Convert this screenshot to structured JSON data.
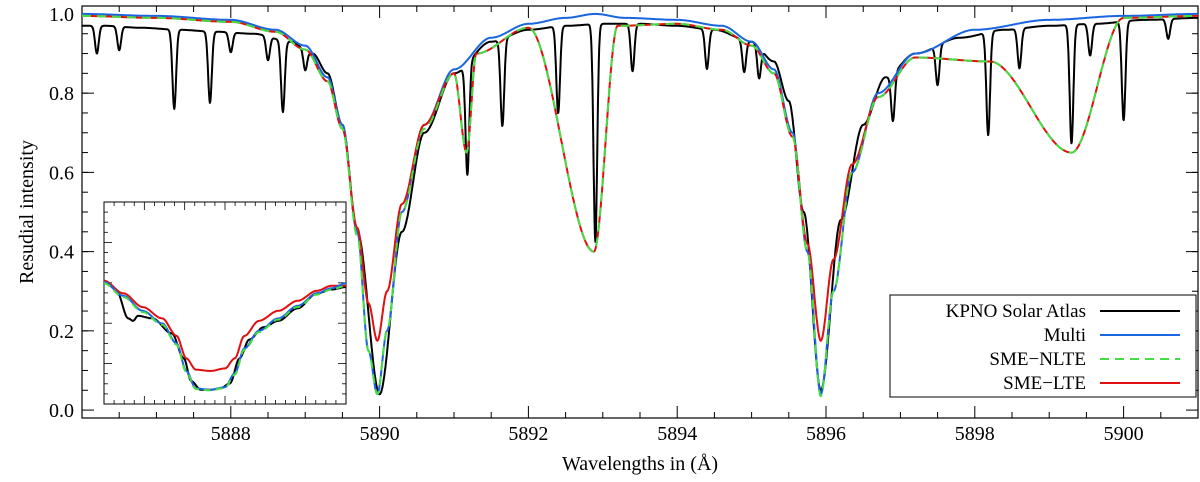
{
  "chart_data": {
    "type": "line",
    "xlabel": "Wavelengths in (Å)",
    "ylabel": "Resudial intensity",
    "xlim": [
      5886.0,
      5901.0
    ],
    "ylim": [
      -0.02,
      1.02
    ],
    "xticks": [
      5888,
      5890,
      5892,
      5894,
      5896,
      5898,
      5900
    ],
    "xtick_labels": [
      "5888",
      "5890",
      "5892",
      "5894",
      "5896",
      "5898",
      "5900"
    ],
    "yticks": [
      0.0,
      0.2,
      0.4,
      0.6,
      0.8,
      1.0
    ],
    "ytick_labels": [
      "0.0",
      "0.2",
      "0.4",
      "0.6",
      "0.8",
      "1.0"
    ],
    "grid": false,
    "legend_position": "bottom-right",
    "series": [
      {
        "name": "KPNO Solar Atlas",
        "color": "#000000",
        "dash": "solid",
        "continuum_x": [
          5886.0,
          5886.3,
          5886.8,
          5887.3,
          5887.8,
          5888.3,
          5888.8,
          5889.1,
          5889.3,
          5889.5,
          5889.7,
          5890.0,
          5890.3,
          5890.6,
          5891.0,
          5891.5,
          5892.0,
          5892.5,
          5893.0,
          5893.5,
          5894.0,
          5894.5,
          5895.0,
          5895.3,
          5895.5,
          5895.7,
          5895.93,
          5896.2,
          5896.5,
          5896.8,
          5897.2,
          5897.8,
          5898.4,
          5899.0,
          5899.6,
          5900.3,
          5901.0
        ],
        "continuum_y": [
          0.97,
          0.97,
          0.965,
          0.96,
          0.955,
          0.95,
          0.93,
          0.9,
          0.85,
          0.72,
          0.45,
          0.04,
          0.45,
          0.7,
          0.85,
          0.93,
          0.96,
          0.97,
          0.975,
          0.975,
          0.97,
          0.96,
          0.93,
          0.88,
          0.78,
          0.5,
          0.05,
          0.48,
          0.72,
          0.84,
          0.9,
          0.94,
          0.96,
          0.97,
          0.975,
          0.985,
          0.99
        ],
        "absorption_lines": [
          {
            "x": 5886.2,
            "depth": 0.07
          },
          {
            "x": 5886.5,
            "depth": 0.06
          },
          {
            "x": 5887.24,
            "depth": 0.2
          },
          {
            "x": 5887.72,
            "depth": 0.18
          },
          {
            "x": 5888.0,
            "depth": 0.05
          },
          {
            "x": 5888.5,
            "depth": 0.06
          },
          {
            "x": 5888.7,
            "depth": 0.18
          },
          {
            "x": 5889.0,
            "depth": 0.05
          },
          {
            "x": 5891.18,
            "depth": 0.28
          },
          {
            "x": 5891.65,
            "depth": 0.22
          },
          {
            "x": 5892.4,
            "depth": 0.22
          },
          {
            "x": 5892.9,
            "depth": 0.55
          },
          {
            "x": 5893.4,
            "depth": 0.12
          },
          {
            "x": 5894.4,
            "depth": 0.1
          },
          {
            "x": 5894.9,
            "depth": 0.08
          },
          {
            "x": 5895.1,
            "depth": 0.08
          },
          {
            "x": 5896.9,
            "depth": 0.12
          },
          {
            "x": 5897.5,
            "depth": 0.1
          },
          {
            "x": 5898.18,
            "depth": 0.26
          },
          {
            "x": 5898.6,
            "depth": 0.1
          },
          {
            "x": 5899.3,
            "depth": 0.3
          },
          {
            "x": 5899.55,
            "depth": 0.08
          },
          {
            "x": 5900.0,
            "depth": 0.25
          },
          {
            "x": 5900.6,
            "depth": 0.05
          }
        ]
      },
      {
        "name": "Multi",
        "color": "#1a66e0",
        "dash": "solid",
        "x": [
          5886.0,
          5887.0,
          5888.0,
          5888.6,
          5889.0,
          5889.3,
          5889.5,
          5889.7,
          5889.85,
          5889.97,
          5890.1,
          5890.3,
          5890.6,
          5891.0,
          5891.5,
          5892.0,
          5892.5,
          5892.9,
          5893.3,
          5894.0,
          5894.6,
          5895.0,
          5895.3,
          5895.55,
          5895.75,
          5895.93,
          5896.1,
          5896.35,
          5896.7,
          5897.2,
          5898.0,
          5899.0,
          5900.0,
          5901.0
        ],
        "y": [
          1.0,
          0.995,
          0.985,
          0.96,
          0.92,
          0.84,
          0.72,
          0.45,
          0.15,
          0.04,
          0.2,
          0.5,
          0.72,
          0.86,
          0.94,
          0.975,
          0.99,
          1.0,
          0.99,
          0.985,
          0.97,
          0.93,
          0.86,
          0.7,
          0.4,
          0.04,
          0.3,
          0.6,
          0.8,
          0.9,
          0.96,
          0.985,
          0.995,
          1.0
        ]
      },
      {
        "name": "SME−NLTE",
        "color": "#44dd44",
        "dash": "dashed",
        "x": [
          5886.0,
          5887.0,
          5888.0,
          5888.6,
          5889.0,
          5889.3,
          5889.5,
          5889.7,
          5889.85,
          5889.97,
          5890.1,
          5890.3,
          5890.6,
          5891.0,
          5891.17,
          5891.3,
          5892.0,
          5892.88,
          5893.2,
          5894.0,
          5894.6,
          5895.0,
          5895.3,
          5895.55,
          5895.75,
          5895.93,
          5896.1,
          5896.35,
          5896.7,
          5897.2,
          5898.2,
          5899.3,
          5900.0,
          5901.0
        ],
        "y": [
          0.995,
          0.99,
          0.98,
          0.955,
          0.91,
          0.83,
          0.71,
          0.44,
          0.15,
          0.04,
          0.2,
          0.5,
          0.71,
          0.85,
          0.65,
          0.9,
          0.965,
          0.4,
          0.97,
          0.975,
          0.96,
          0.92,
          0.85,
          0.69,
          0.4,
          0.035,
          0.3,
          0.6,
          0.79,
          0.89,
          0.88,
          0.65,
          0.99,
          0.995
        ]
      },
      {
        "name": "SME−LTE",
        "color": "#e01010",
        "dash": "solid",
        "x": [
          5886.0,
          5887.0,
          5888.0,
          5888.6,
          5889.0,
          5889.3,
          5889.5,
          5889.7,
          5889.85,
          5889.97,
          5890.1,
          5890.3,
          5890.6,
          5891.0,
          5891.17,
          5891.3,
          5892.0,
          5892.88,
          5893.2,
          5894.0,
          5894.6,
          5895.0,
          5895.3,
          5895.55,
          5895.75,
          5895.93,
          5896.1,
          5896.35,
          5896.7,
          5897.2,
          5898.2,
          5899.3,
          5900.0,
          5901.0
        ],
        "y": [
          0.995,
          0.99,
          0.98,
          0.955,
          0.91,
          0.83,
          0.71,
          0.46,
          0.27,
          0.175,
          0.3,
          0.52,
          0.72,
          0.85,
          0.65,
          0.9,
          0.965,
          0.4,
          0.97,
          0.975,
          0.96,
          0.92,
          0.85,
          0.69,
          0.42,
          0.175,
          0.38,
          0.62,
          0.79,
          0.89,
          0.88,
          0.65,
          0.99,
          0.995
        ]
      }
    ],
    "inset": {
      "description_x_range": [
        0,
        1
      ],
      "black": {
        "x": [
          0,
          0.05,
          0.1,
          0.12,
          0.14,
          0.2,
          0.28,
          0.33,
          0.36,
          0.4,
          0.44,
          0.48,
          0.52,
          0.56,
          0.6,
          0.66,
          0.72,
          0.8,
          0.88,
          0.94,
          1.0
        ],
        "y": [
          0.92,
          0.85,
          0.62,
          0.6,
          0.64,
          0.62,
          0.5,
          0.3,
          0.12,
          0.05,
          0.05,
          0.06,
          0.1,
          0.3,
          0.45,
          0.55,
          0.6,
          0.7,
          0.82,
          0.85,
          0.87
        ]
      },
      "blue": {
        "x": [
          0,
          0.08,
          0.16,
          0.24,
          0.3,
          0.34,
          0.38,
          0.44,
          0.5,
          0.54,
          0.58,
          0.64,
          0.72,
          0.8,
          0.88,
          0.94,
          1.0
        ],
        "y": [
          0.91,
          0.8,
          0.68,
          0.58,
          0.42,
          0.2,
          0.06,
          0.05,
          0.07,
          0.18,
          0.38,
          0.52,
          0.62,
          0.72,
          0.82,
          0.86,
          0.9
        ]
      },
      "green": {
        "x": [
          0,
          0.08,
          0.16,
          0.24,
          0.3,
          0.34,
          0.38,
          0.44,
          0.5,
          0.54,
          0.58,
          0.64,
          0.72,
          0.8,
          0.88,
          0.94,
          1.0
        ],
        "y": [
          0.9,
          0.79,
          0.67,
          0.57,
          0.41,
          0.19,
          0.055,
          0.045,
          0.065,
          0.17,
          0.37,
          0.51,
          0.61,
          0.71,
          0.81,
          0.85,
          0.88
        ]
      },
      "red": {
        "x": [
          0,
          0.08,
          0.16,
          0.24,
          0.3,
          0.34,
          0.38,
          0.44,
          0.5,
          0.54,
          0.58,
          0.64,
          0.72,
          0.8,
          0.88,
          0.94,
          1.0
        ],
        "y": [
          0.92,
          0.82,
          0.71,
          0.62,
          0.48,
          0.3,
          0.21,
          0.2,
          0.22,
          0.3,
          0.48,
          0.6,
          0.68,
          0.76,
          0.84,
          0.88,
          0.88
        ]
      }
    }
  }
}
